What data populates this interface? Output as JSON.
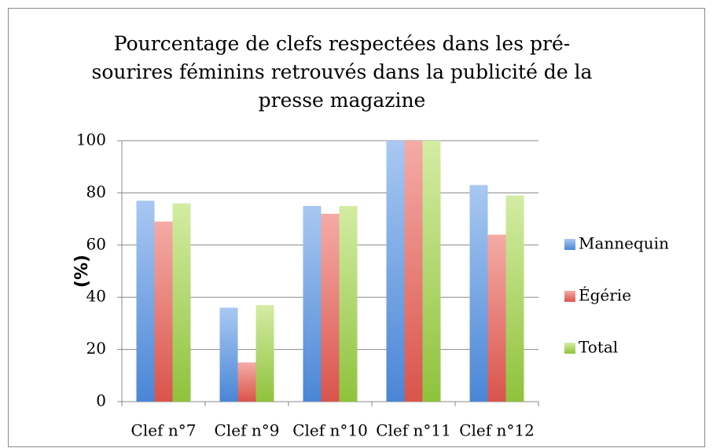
{
  "chart_data": {
    "type": "bar",
    "title": "Pourcentage de clefs respectées dans les pré-sourires féminins retrouvés dans la publicité de la presse magazine",
    "y_label": "(%)",
    "categories": [
      "Clef n°7",
      "Clef n°9",
      "Clef n°10",
      "Clef n°11",
      "Clef n°12"
    ],
    "series": [
      {
        "name": "Mannequin",
        "color": "#6f9fdc",
        "values": [
          77,
          36,
          75,
          100,
          83
        ]
      },
      {
        "name": "Égérie",
        "color": "#e2706a",
        "values": [
          69,
          15,
          72,
          100,
          64
        ]
      },
      {
        "name": "Total",
        "color": "#a8d25c",
        "values": [
          76,
          37,
          75,
          100,
          79
        ]
      }
    ],
    "ylim": [
      0,
      100
    ],
    "yticks": [
      0,
      20,
      40,
      60,
      80,
      100
    ],
    "grid": true,
    "legend": "right"
  }
}
